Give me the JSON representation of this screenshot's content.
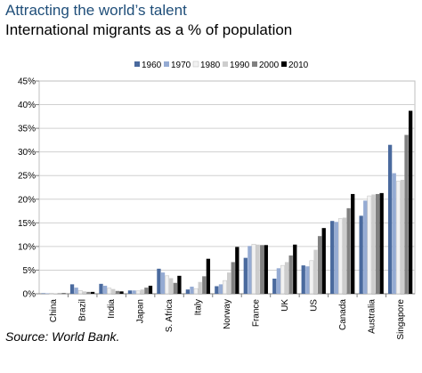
{
  "header": {
    "title": "Attracting the world’s talent",
    "subtitle": "International migrants as a % of population"
  },
  "footer": {
    "source": "Source: World Bank."
  },
  "colors": {
    "1960": "#4a6a9e",
    "1970": "#95abd3",
    "1980": "#f2f2f2",
    "1990": "#cdcdcd",
    "2000": "#808080",
    "2010": "#000000"
  },
  "chart_data": {
    "type": "bar",
    "title": "International migrants as a % of population",
    "xlabel": "",
    "ylabel": "",
    "ylim": [
      0,
      45
    ],
    "yticks": [
      "0%",
      "5%",
      "10%",
      "15%",
      "20%",
      "25%",
      "30%",
      "35%",
      "40%",
      "45%"
    ],
    "grid": true,
    "legend_position": "top-right",
    "categories": [
      "China",
      "Brazil",
      "India",
      "Japan",
      "S. Africa",
      "Italy",
      "Norway",
      "France",
      "UK",
      "US",
      "Canada",
      "Australia",
      "Singapore"
    ],
    "series": [
      {
        "name": "1960",
        "values": [
          0.1,
          2.0,
          2.1,
          0.7,
          5.3,
          0.9,
          1.6,
          7.6,
          3.2,
          6.0,
          15.4,
          16.5,
          31.5
        ]
      },
      {
        "name": "1970",
        "values": [
          0.1,
          1.3,
          1.7,
          0.7,
          4.5,
          1.5,
          2.0,
          10.1,
          5.4,
          5.8,
          15.2,
          19.7,
          25.5
        ]
      },
      {
        "name": "1980",
        "values": [
          0.1,
          0.7,
          1.2,
          0.6,
          3.8,
          1.1,
          2.8,
          10.5,
          6.0,
          7.0,
          15.9,
          20.7,
          23.8
        ]
      },
      {
        "name": "1990",
        "values": [
          0.1,
          0.5,
          1.0,
          0.9,
          3.3,
          2.5,
          4.5,
          10.4,
          6.7,
          9.3,
          16.1,
          21.0,
          24.1
        ]
      },
      {
        "name": "2000",
        "values": [
          0.1,
          0.4,
          0.6,
          1.3,
          2.3,
          3.7,
          6.7,
          10.3,
          8.1,
          12.2,
          18.1,
          21.1,
          33.6
        ]
      },
      {
        "name": "2010",
        "values": [
          0.1,
          0.4,
          0.5,
          1.7,
          3.8,
          7.4,
          9.9,
          10.3,
          10.4,
          13.9,
          21.1,
          21.3,
          38.7
        ]
      }
    ]
  }
}
